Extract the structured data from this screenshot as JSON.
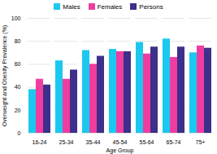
{
  "chart_data": {
    "type": "bar",
    "xlabel": "Age Group",
    "ylabel": "Overweight and Obesity Prevalence (%)",
    "categories": [
      "16-24",
      "25-34",
      "35-44",
      "45-54",
      "55-64",
      "65-74",
      "75+"
    ],
    "series": [
      {
        "name": "Males",
        "color": "#1bc8f0",
        "values": [
          38,
          63,
          72,
          73,
          79,
          82,
          70
        ]
      },
      {
        "name": "Females",
        "color": "#f03ca0",
        "values": [
          47,
          47,
          60,
          71,
          69,
          66,
          76
        ]
      },
      {
        "name": "Persons",
        "color": "#3d2f8a",
        "values": [
          42,
          55,
          67,
          71,
          75,
          75,
          74
        ]
      }
    ],
    "ylim": [
      0,
      100
    ],
    "yticks": [
      0,
      20,
      40,
      60,
      80,
      100
    ],
    "grid": true,
    "legend": "top"
  }
}
